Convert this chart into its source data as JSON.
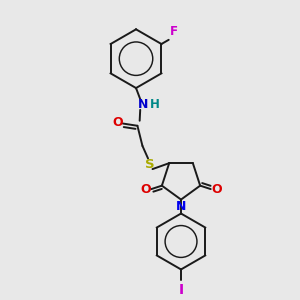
{
  "bg_color": "#e8e8e8",
  "bond_color": "#1a1a1a",
  "atom_colors": {
    "F": "#cc00cc",
    "N_amide": "#0000cc",
    "H": "#008888",
    "N_ring": "#0000ee",
    "O": "#dd0000",
    "S": "#aaaa00",
    "I": "#cc00cc"
  },
  "figsize": [
    3.0,
    3.0
  ],
  "dpi": 100
}
